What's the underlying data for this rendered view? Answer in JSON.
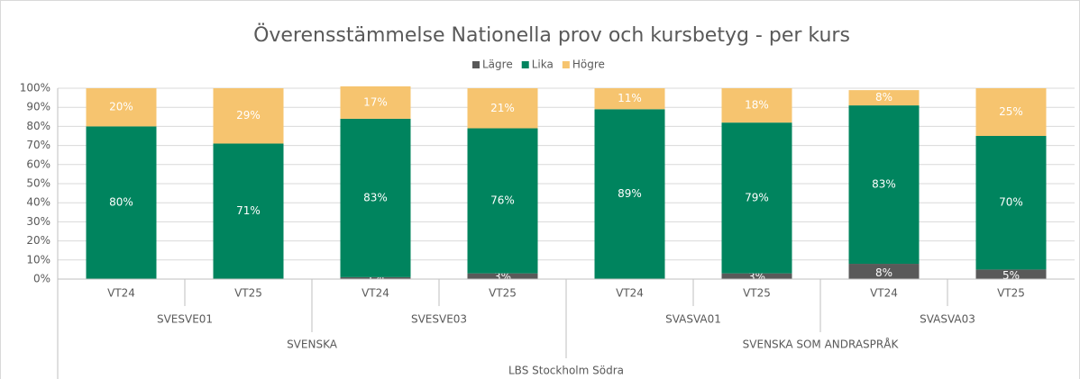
{
  "chart_data": {
    "type": "stacked_bar",
    "title": "Överensstämmelse Nationella prov och kursbetyg - per kurs",
    "categories": [
      "VT24",
      "VT25",
      "VT24",
      "VT25",
      "VT24",
      "VT25",
      "VT24",
      "VT25"
    ],
    "groups": [
      "SVESVE01",
      "SVESVE03",
      "SVASVA01",
      "SVASVA03"
    ],
    "supergroups": [
      "SVENSKA",
      "SVENSKA SOM ANDRASPRÅK"
    ],
    "root_group": "LBS Stockholm Södra",
    "series": [
      {
        "name": "Lägre",
        "color": "#595959",
        "values": [
          0,
          0,
          1,
          3,
          0,
          3,
          8,
          5
        ],
        "value_labels": [
          "0%",
          "0%",
          "1%",
          "3%",
          "0%",
          "3%",
          "8%",
          "5%"
        ]
      },
      {
        "name": "Lika",
        "color": "#00845e",
        "values": [
          80,
          71,
          83,
          76,
          89,
          79,
          83,
          70
        ],
        "value_labels": [
          "80%",
          "71%",
          "83%",
          "76%",
          "89%",
          "79%",
          "83%",
          "70%"
        ]
      },
      {
        "name": "Högre",
        "color": "#f6c46f",
        "values": [
          20,
          29,
          17,
          21,
          11,
          18,
          8,
          25
        ],
        "value_labels": [
          "20%",
          "29%",
          "17%",
          "21%",
          "11%",
          "18%",
          "8%",
          "25%"
        ]
      }
    ],
    "ylim": [
      0,
      100
    ],
    "yticks": [
      {
        "value": 0,
        "label": "0%"
      },
      {
        "value": 10,
        "label": "10%"
      },
      {
        "value": 20,
        "label": "20%"
      },
      {
        "value": 30,
        "label": "30%"
      },
      {
        "value": 40,
        "label": "40%"
      },
      {
        "value": 50,
        "label": "50%"
      },
      {
        "value": 60,
        "label": "60%"
      },
      {
        "value": 70,
        "label": "70%"
      },
      {
        "value": 80,
        "label": "80%"
      },
      {
        "value": 90,
        "label": "90%"
      },
      {
        "value": 100,
        "label": "100%"
      }
    ],
    "legend": "top",
    "grid": true
  }
}
